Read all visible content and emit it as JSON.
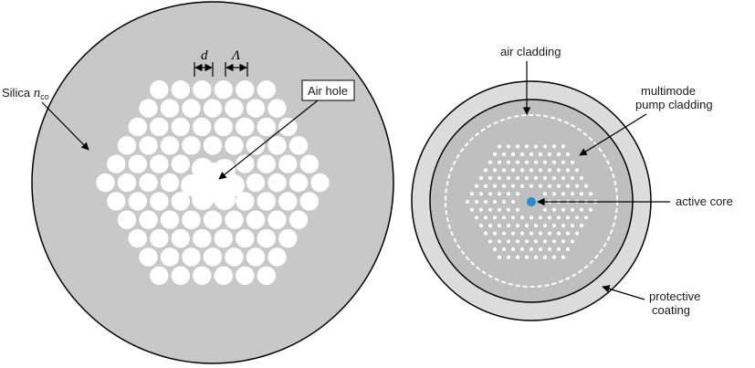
{
  "left_figure": {
    "label_silica": "Silica",
    "label_silica_n": "n",
    "label_silica_sub": "co",
    "label_air_hole": "Air hole",
    "label_d": "d",
    "label_pitch": "Λ",
    "lattice_rings": 5,
    "missing_center": "1 central hole (solid core)"
  },
  "right_figure": {
    "label_air_cladding": "air cladding",
    "label_pump_line1": "multimode",
    "label_pump_line2": "pump cladding",
    "label_active_core": "active core",
    "label_protective_line1": "protective",
    "label_protective_line2": "coating",
    "lattice_rings": 7
  },
  "colors": {
    "silica_fill": "#c8c8c8",
    "coating_fill": "#dcdcdc",
    "pump_cladding_fill": "#bfbfbf",
    "hole_fill": "#ffffff",
    "core_fill": "#1f8fd4",
    "outline": "#000000"
  }
}
